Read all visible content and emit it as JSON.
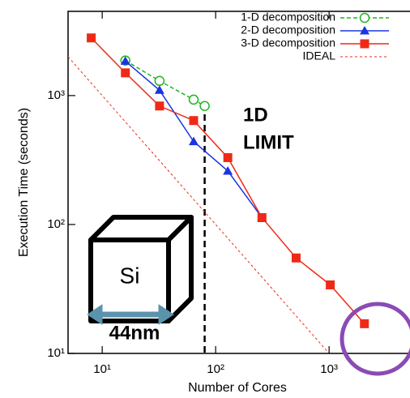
{
  "chart_data": {
    "type": "line",
    "log_x": true,
    "log_y": true,
    "x_label": "Number of Cores",
    "y_label": "Execution Time (seconds)",
    "xlim": [
      5,
      5000
    ],
    "ylim": [
      10,
      4500
    ],
    "xticks": [
      {
        "value": 10,
        "label": "10¹"
      },
      {
        "value": 100,
        "label": "10²"
      },
      {
        "value": 1000,
        "label": "10³"
      }
    ],
    "yticks": [
      {
        "value": 10,
        "label": "10¹"
      },
      {
        "value": 100,
        "label": "10²"
      },
      {
        "value": 1000,
        "label": "10³"
      }
    ],
    "legend_position": "upper right",
    "series": [
      {
        "name": "1-D decomposition",
        "color": "#1fb51f",
        "linestyle": "dashed",
        "marker": "circle-open",
        "x": [
          16,
          32,
          64,
          80
        ],
        "values": [
          1870,
          1300,
          930,
          830
        ]
      },
      {
        "name": "2-D decomposition",
        "color": "#1a35e0",
        "linestyle": "solid",
        "marker": "triangle",
        "x": [
          16,
          32,
          64,
          128,
          256
        ],
        "values": [
          1850,
          1100,
          440,
          260,
          113
        ]
      },
      {
        "name": "3-D decomposition",
        "color": "#ee2a16",
        "linestyle": "solid",
        "marker": "square",
        "x": [
          8,
          16,
          32,
          64,
          128,
          256,
          512,
          1024,
          2048
        ],
        "values": [
          2800,
          1500,
          830,
          640,
          330,
          113,
          55,
          34,
          17
        ]
      },
      {
        "name": "IDEAL",
        "color": "#ee2a16",
        "linestyle": "dotted",
        "marker": "none",
        "x": [
          5,
          1000
        ],
        "values": [
          2000,
          10
        ]
      }
    ],
    "vline_x": 80,
    "annotations": [
      "1D",
      "LIMIT",
      "Si",
      "44nm"
    ]
  }
}
